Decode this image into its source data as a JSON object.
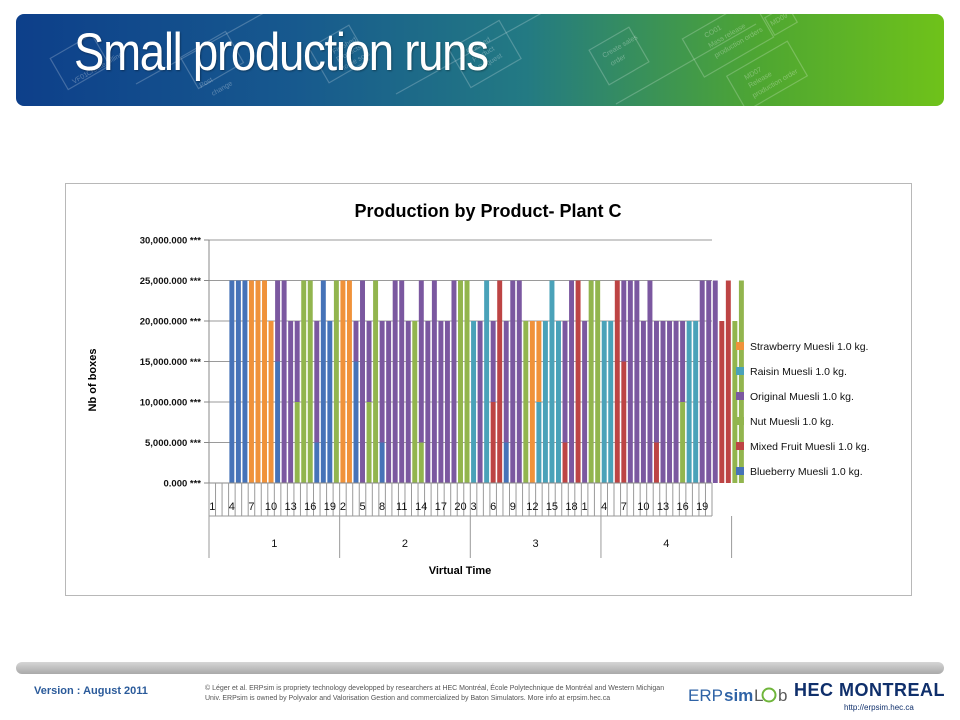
{
  "slide": {
    "title": "Small production runs",
    "banner_words": [
      "VF01",
      "Create billing",
      "Post",
      "change",
      "Finished",
      "Products",
      "to be sold",
      "Finished",
      "Product",
      "Request",
      "Create sales",
      "order",
      "CO01",
      "Mass release",
      "production orders",
      "MD07",
      "Release",
      "production order",
      "MD09"
    ]
  },
  "footer": {
    "version": "Version : August 2011",
    "copyright_line1": "© Léger et al. ERPsim is propriety technology developped by researchers at HEC Montréal, École Polytechnique de Montréal and Western Michigan",
    "copyright_line2": "Univ. ERPsim is owned by Polyvalor and Valorisation Gestion and commercialized by Baton Simulators. More info at erpsim.hec.ca",
    "logo_erpsim_a": "ERP",
    "logo_erpsim_b": "sim",
    "logo_erpsim_c": "L",
    "logo_erpsim_d": "b",
    "logo_hec": "HEC MONTREAL",
    "logo_hec_url": "http://erpsim.hec.ca"
  },
  "colors": {
    "Strawberry": "#f0923a",
    "Raisin": "#4aa2b9",
    "Original": "#7b58a0",
    "Nut": "#92b54e",
    "Mixed": "#bd4444",
    "Blueberry": "#4673b8"
  },
  "chart_data": {
    "type": "bar",
    "title": "Production by Product- Plant C",
    "xlabel": "Virtual Time",
    "ylabel": "Nb of boxes",
    "ylim": [
      0,
      30000000
    ],
    "y_ticks": [
      "0.000 ***",
      "5,000.000 ***",
      "10,000.000 ***",
      "15,000.000 ***",
      "20,000.000 ***",
      "25,000.000 ***",
      "30,000.000 ***"
    ],
    "grid": true,
    "legend_position": "right",
    "x_days": [
      "1",
      "",
      "",
      "4",
      "",
      "",
      "7",
      "",
      "",
      "10",
      "",
      "",
      "13",
      "",
      "",
      "16",
      "",
      "",
      "19",
      "",
      "2",
      "",
      "",
      "5",
      "",
      "",
      "8",
      "",
      "",
      "11",
      "",
      "",
      "14",
      "",
      "",
      "17",
      "",
      "",
      "20",
      "",
      "3",
      "",
      "",
      "6",
      "",
      "",
      "9",
      "",
      "",
      "12",
      "",
      "",
      "15",
      "",
      "",
      "18",
      "",
      "1",
      "",
      "",
      "4",
      "",
      "",
      "7",
      "",
      "",
      "10",
      "",
      "",
      "13",
      "",
      "",
      "16",
      "",
      "",
      "19",
      ""
    ],
    "x_groups": [
      {
        "label": "1",
        "span": 20
      },
      {
        "label": "2",
        "span": 20
      },
      {
        "label": "3",
        "span": 20
      },
      {
        "label": "4",
        "span": 20
      }
    ],
    "series_names": [
      "Strawberry Muesli 1.0 kg.",
      "Raisin Muesli 1.0 kg.",
      "Original Muesli 1.0 kg.",
      "Nut Muesli 1.0 kg.",
      "Mixed Fruit Muesli 1.0 kg.",
      "Blueberry Muesli 1.0 kg."
    ],
    "legend": [
      {
        "name": "Strawberry Muesli 1.0 kg.",
        "key": "Strawberry"
      },
      {
        "name": "Raisin Muesli 1.0 kg.",
        "key": "Raisin"
      },
      {
        "name": "Original Muesli 1.0 kg.",
        "key": "Original"
      },
      {
        "name": "Nut Muesli 1.0 kg.",
        "key": "Nut"
      },
      {
        "name": "Mixed Fruit Muesli 1.0 kg.",
        "key": "Mixed"
      },
      {
        "name": "Blueberry Muesli 1.0 kg.",
        "key": "Blueberry"
      }
    ],
    "bars": [
      [],
      [],
      [],
      [
        [
          "Blueberry",
          25000000
        ]
      ],
      [
        [
          "Blueberry",
          25000000
        ]
      ],
      [
        [
          "Blueberry",
          25000000
        ]
      ],
      [
        [
          "Strawberry",
          20000000
        ],
        [
          "Strawberry",
          5000000
        ]
      ],
      [
        [
          "Strawberry",
          20000000
        ],
        [
          "Strawberry",
          5000000
        ]
      ],
      [
        [
          "Strawberry",
          25000000
        ]
      ],
      [
        [
          "Strawberry",
          20000000
        ]
      ],
      [
        [
          "Blueberry",
          15000000
        ],
        [
          "Original",
          10000000
        ]
      ],
      [
        [
          "Original",
          25000000
        ]
      ],
      [
        [
          "Original",
          20000000
        ]
      ],
      [
        [
          "Nut",
          10000000
        ],
        [
          "Original",
          10000000
        ]
      ],
      [
        [
          "Nut",
          25000000
        ]
      ],
      [
        [
          "Nut",
          25000000
        ]
      ],
      [
        [
          "Blueberry",
          5000000
        ],
        [
          "Original",
          15000000
        ]
      ],
      [
        [
          "Blueberry",
          25000000
        ]
      ],
      [
        [
          "Blueberry",
          20000000
        ]
      ],
      [
        [
          "Nut",
          25000000
        ]
      ],
      [
        [
          "Strawberry",
          25000000
        ]
      ],
      [
        [
          "Strawberry",
          20000000
        ],
        [
          "Strawberry",
          5000000
        ]
      ],
      [
        [
          "Blueberry",
          15000000
        ],
        [
          "Original",
          5000000
        ]
      ],
      [
        [
          "Original",
          25000000
        ]
      ],
      [
        [
          "Nut",
          10000000
        ],
        [
          "Original",
          10000000
        ]
      ],
      [
        [
          "Nut",
          25000000
        ]
      ],
      [
        [
          "Blueberry",
          5000000
        ],
        [
          "Original",
          15000000
        ]
      ],
      [
        [
          "Original",
          20000000
        ]
      ],
      [
        [
          "Original",
          25000000
        ]
      ],
      [
        [
          "Original",
          25000000
        ]
      ],
      [
        [
          "Original",
          20000000
        ]
      ],
      [
        [
          "Nut",
          20000000
        ]
      ],
      [
        [
          "Nut",
          5000000
        ],
        [
          "Original",
          20000000
        ]
      ],
      [
        [
          "Original",
          20000000
        ]
      ],
      [
        [
          "Original",
          25000000
        ]
      ],
      [
        [
          "Original",
          20000000
        ]
      ],
      [
        [
          "Original",
          20000000
        ]
      ],
      [
        [
          "Original",
          25000000
        ]
      ],
      [
        [
          "Nut",
          25000000
        ]
      ],
      [
        [
          "Nut",
          25000000
        ]
      ],
      [
        [
          "Raisin",
          20000000
        ]
      ],
      [
        [
          "Original",
          20000000
        ]
      ],
      [
        [
          "Raisin",
          25000000
        ]
      ],
      [
        [
          "Mixed",
          10000000
        ],
        [
          "Original",
          10000000
        ]
      ],
      [
        [
          "Mixed",
          25000000
        ]
      ],
      [
        [
          "Blueberry",
          5000000
        ],
        [
          "Original",
          15000000
        ]
      ],
      [
        [
          "Original",
          25000000
        ]
      ],
      [
        [
          "Original",
          25000000
        ]
      ],
      [
        [
          "Nut",
          20000000
        ]
      ],
      [
        [
          "Strawberry",
          20000000
        ]
      ],
      [
        [
          "Raisin",
          10000000
        ],
        [
          "Strawberry",
          10000000
        ]
      ],
      [
        [
          "Raisin",
          20000000
        ]
      ],
      [
        [
          "Raisin",
          25000000
        ]
      ],
      [
        [
          "Raisin",
          20000000
        ]
      ],
      [
        [
          "Mixed",
          5000000
        ],
        [
          "Original",
          15000000
        ]
      ],
      [
        [
          "Original",
          25000000
        ]
      ],
      [
        [
          "Mixed",
          25000000
        ]
      ],
      [
        [
          "Original",
          20000000
        ]
      ],
      [
        [
          "Nut",
          25000000
        ]
      ],
      [
        [
          "Nut",
          25000000
        ]
      ],
      [
        [
          "Raisin",
          20000000
        ]
      ],
      [
        [
          "Raisin",
          20000000
        ]
      ],
      [
        [
          "Mixed",
          10000000
        ],
        [
          "Mixed",
          15000000
        ]
      ],
      [
        [
          "Mixed",
          15000000
        ],
        [
          "Original",
          10000000
        ]
      ],
      [
        [
          "Original",
          25000000
        ]
      ],
      [
        [
          "Original",
          25000000
        ]
      ],
      [
        [
          "Original",
          20000000
        ]
      ],
      [
        [
          "Original",
          25000000
        ]
      ],
      [
        [
          "Mixed",
          5000000
        ],
        [
          "Original",
          15000000
        ]
      ],
      [
        [
          "Original",
          20000000
        ]
      ],
      [
        [
          "Original",
          20000000
        ]
      ],
      [
        [
          "Original",
          20000000
        ]
      ],
      [
        [
          "Nut",
          10000000
        ],
        [
          "Original",
          10000000
        ]
      ],
      [
        [
          "Raisin",
          20000000
        ]
      ],
      [
        [
          "Raisin",
          20000000
        ]
      ],
      [
        [
          "Original",
          25000000
        ]
      ],
      [
        [
          "Original",
          25000000
        ]
      ],
      [
        [
          "Original",
          25000000
        ]
      ],
      [
        [
          "Mixed",
          20000000
        ]
      ],
      [
        [
          "Mixed",
          25000000
        ]
      ],
      [
        [
          "Nut",
          20000000
        ]
      ],
      [
        [
          "Nut",
          25000000
        ]
      ]
    ]
  }
}
